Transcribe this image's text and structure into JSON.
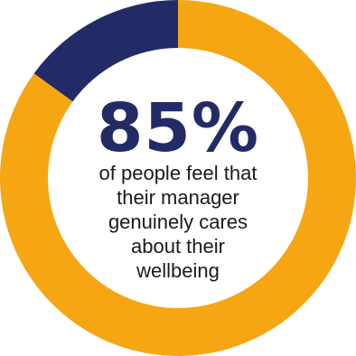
{
  "chart_data": {
    "type": "pie",
    "slices": [
      {
        "label": "",
        "value": 85,
        "color": "#F5A612"
      },
      {
        "label": "",
        "value": 15,
        "color": "#232B67"
      }
    ],
    "start_angle_deg": 0,
    "direction": "clockwise",
    "headline": "85%",
    "caption_lines": [
      "of people feel that",
      "their manager",
      "genuinely cares",
      "about their",
      "wellbeing"
    ]
  },
  "colors": {
    "accent": "#F5A612",
    "dark": "#232B67",
    "text": "#1a1a1a"
  }
}
